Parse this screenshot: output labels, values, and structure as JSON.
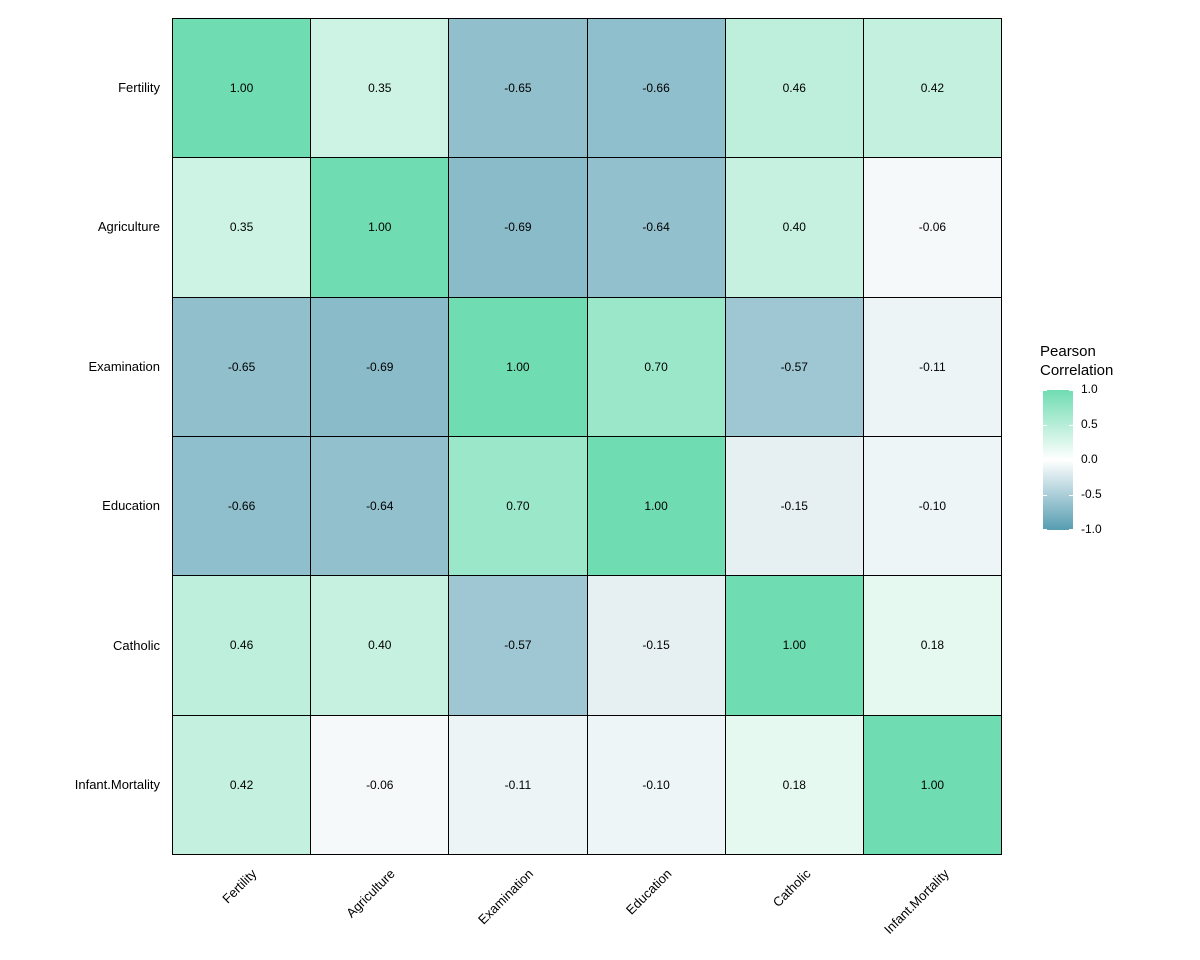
{
  "chart_data": {
    "type": "heatmap",
    "title": "",
    "variables": [
      "Fertility",
      "Agriculture",
      "Examination",
      "Education",
      "Catholic",
      "Infant.Mortality"
    ],
    "matrix": [
      [
        1.0,
        0.35,
        -0.65,
        -0.66,
        0.46,
        0.42
      ],
      [
        0.35,
        1.0,
        -0.69,
        -0.64,
        0.4,
        -0.06
      ],
      [
        -0.65,
        -0.69,
        1.0,
        0.7,
        -0.57,
        -0.11
      ],
      [
        -0.66,
        -0.64,
        0.7,
        1.0,
        -0.15,
        -0.1
      ],
      [
        0.46,
        0.4,
        -0.57,
        -0.15,
        1.0,
        0.18
      ],
      [
        0.42,
        -0.06,
        -0.11,
        -0.1,
        0.18,
        1.0
      ]
    ],
    "value_decimals": 2,
    "axes": {
      "x_tick_angle_deg": 45,
      "grid": false
    },
    "legend": {
      "title_lines": [
        "Pearson",
        "Correlation"
      ],
      "tick_labels": [
        "1.0",
        "0.5",
        "0.0",
        "-0.5",
        "-1.0"
      ],
      "tick_values": [
        1.0,
        0.5,
        0.0,
        -0.5,
        -1.0
      ],
      "range": [
        -1.0,
        1.0
      ],
      "position": "right"
    },
    "palette": {
      "high": "#70DCB2",
      "mid": "#FFFFFF",
      "low": "#569DB1",
      "grid_line": "#000000",
      "text": "#000000",
      "background": "#FFFFFF"
    }
  }
}
